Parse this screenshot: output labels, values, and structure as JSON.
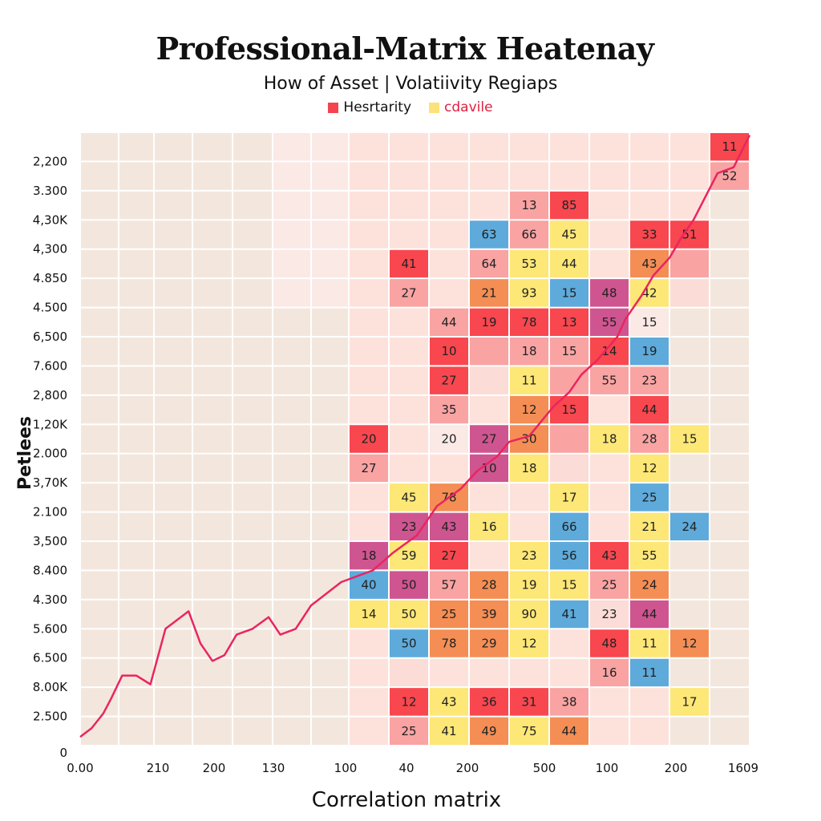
{
  "chart_data": {
    "type": "heatmap",
    "title": "Professional-Matrix Heatenay",
    "subtitle": "How of Asset | Volatiivity Regiaps",
    "legend": [
      {
        "label": "Hesrtarity",
        "color": "#f5434f",
        "text_color": "#111111"
      },
      {
        "label": "cdavile",
        "color": "#fbe27a",
        "text_color": "#e02040"
      }
    ],
    "legend_placement": "top-center",
    "xlabel": "Correlation matrix",
    "ylabel": "Petlees",
    "x_tick_labels": [
      "0.00",
      "210",
      "200",
      "130",
      "100",
      "40",
      "200",
      "500",
      "100",
      "200",
      "1609"
    ],
    "y_tick_labels": [
      "2,200",
      "3.300",
      "4,30K",
      "4,300",
      "4.850",
      "4.500",
      "6,500",
      "7.600",
      "2,800",
      "1,20K",
      "2.000",
      "3,70K",
      "2.100",
      "3,500",
      "8.400",
      "4.300",
      "5.600",
      "6.500",
      "8.00K",
      "2.500",
      "0"
    ],
    "grid": true,
    "colors": {
      "R": "#f8474f",
      "P": "#f9a3a3",
      "Y": "#fde776",
      "B": "#5eaadb",
      "O": "#f48e55",
      "M": "#cf5590",
      "L": "#fcdcd6",
      "W": "#fbe9e6",
      "beige": "#f3e7dd",
      "pinkbg": "#fde2dc",
      "line": "#ea2560"
    },
    "cells": [
      [
        {
          "c": 9,
          "v": "11",
          "k": "R"
        }
      ],
      [
        {
          "c": 9,
          "v": "52",
          "k": "P"
        }
      ],
      [
        {
          "c": 4,
          "v": "13",
          "k": "P"
        },
        {
          "c": 5,
          "v": "85",
          "k": "R"
        }
      ],
      [
        {
          "c": 3,
          "v": "63",
          "k": "B"
        },
        {
          "c": 4,
          "v": "66",
          "k": "P"
        },
        {
          "c": 5,
          "v": "45",
          "k": "Y"
        },
        {
          "c": 7,
          "v": "33",
          "k": "R"
        },
        {
          "c": 8,
          "v": "51",
          "k": "R"
        }
      ],
      [
        {
          "c": 1,
          "v": "41",
          "k": "R"
        },
        {
          "c": 3,
          "v": "64",
          "k": "P"
        },
        {
          "c": 4,
          "v": "53",
          "k": "Y"
        },
        {
          "c": 5,
          "v": "44",
          "k": "Y"
        },
        {
          "c": 7,
          "v": "43",
          "k": "O"
        },
        {
          "c": 8,
          "v": "",
          "k": "P"
        }
      ],
      [
        {
          "c": 1,
          "v": "27",
          "k": "P"
        },
        {
          "c": 3,
          "v": "21",
          "k": "O"
        },
        {
          "c": 4,
          "v": "93",
          "k": "Y"
        },
        {
          "c": 5,
          "v": "15",
          "k": "B"
        },
        {
          "c": 6,
          "v": "48",
          "k": "M"
        },
        {
          "c": 7,
          "v": "42",
          "k": "Y"
        },
        {
          "c": 8,
          "v": "",
          "k": "L"
        }
      ],
      [
        {
          "c": 2,
          "v": "44",
          "k": "P"
        },
        {
          "c": 3,
          "v": "19",
          "k": "R"
        },
        {
          "c": 4,
          "v": "78",
          "k": "R"
        },
        {
          "c": 5,
          "v": "13",
          "k": "R"
        },
        {
          "c": 6,
          "v": "55",
          "k": "M"
        },
        {
          "c": 7,
          "v": "15",
          "k": "W"
        }
      ],
      [
        {
          "c": 2,
          "v": "10",
          "k": "R"
        },
        {
          "c": 3,
          "v": "",
          "k": "P"
        },
        {
          "c": 4,
          "v": "18",
          "k": "P"
        },
        {
          "c": 5,
          "v": "15",
          "k": "P"
        },
        {
          "c": 6,
          "v": "14",
          "k": "R"
        },
        {
          "c": 7,
          "v": "19",
          "k": "B"
        }
      ],
      [
        {
          "c": 2,
          "v": "27",
          "k": "R"
        },
        {
          "c": 3,
          "v": "",
          "k": "L"
        },
        {
          "c": 4,
          "v": "11",
          "k": "Y"
        },
        {
          "c": 5,
          "v": "",
          "k": "P"
        },
        {
          "c": 6,
          "v": "55",
          "k": "P"
        },
        {
          "c": 7,
          "v": "23",
          "k": "P"
        }
      ],
      [
        {
          "c": 2,
          "v": "35",
          "k": "P"
        },
        {
          "c": 4,
          "v": "12",
          "k": "O"
        },
        {
          "c": 5,
          "v": "15",
          "k": "R"
        },
        {
          "c": 7,
          "v": "44",
          "k": "R"
        }
      ],
      [
        {
          "c": 0,
          "v": "20",
          "k": "R"
        },
        {
          "c": 2,
          "v": "20",
          "k": "W"
        },
        {
          "c": 3,
          "v": "27",
          "k": "M"
        },
        {
          "c": 4,
          "v": "30",
          "k": "O"
        },
        {
          "c": 5,
          "v": "",
          "k": "P"
        },
        {
          "c": 6,
          "v": "18",
          "k": "Y"
        },
        {
          "c": 7,
          "v": "28",
          "k": "P"
        },
        {
          "c": 8,
          "v": "15",
          "k": "Y"
        }
      ],
      [
        {
          "c": 0,
          "v": "27",
          "k": "P"
        },
        {
          "c": 3,
          "v": "10",
          "k": "M"
        },
        {
          "c": 4,
          "v": "18",
          "k": "Y"
        },
        {
          "c": 5,
          "v": "",
          "k": "L"
        },
        {
          "c": 7,
          "v": "12",
          "k": "Y"
        }
      ],
      [
        {
          "c": 1,
          "v": "45",
          "k": "Y"
        },
        {
          "c": 2,
          "v": "78",
          "k": "O"
        },
        {
          "c": 5,
          "v": "17",
          "k": "Y"
        },
        {
          "c": 7,
          "v": "25",
          "k": "B"
        }
      ],
      [
        {
          "c": 1,
          "v": "23",
          "k": "M"
        },
        {
          "c": 2,
          "v": "43",
          "k": "M"
        },
        {
          "c": 3,
          "v": "16",
          "k": "Y"
        },
        {
          "c": 5,
          "v": "66",
          "k": "B"
        },
        {
          "c": 7,
          "v": "21",
          "k": "Y"
        },
        {
          "c": 8,
          "v": "24",
          "k": "B"
        }
      ],
      [
        {
          "c": 0,
          "v": "18",
          "k": "M"
        },
        {
          "c": 1,
          "v": "59",
          "k": "Y"
        },
        {
          "c": 2,
          "v": "27",
          "k": "R"
        },
        {
          "c": 4,
          "v": "23",
          "k": "Y"
        },
        {
          "c": 5,
          "v": "56",
          "k": "B"
        },
        {
          "c": 6,
          "v": "43",
          "k": "R"
        },
        {
          "c": 7,
          "v": "55",
          "k": "Y"
        }
      ],
      [
        {
          "c": 0,
          "v": "40",
          "k": "B"
        },
        {
          "c": 1,
          "v": "50",
          "k": "M"
        },
        {
          "c": 2,
          "v": "57",
          "k": "P"
        },
        {
          "c": 3,
          "v": "28",
          "k": "O"
        },
        {
          "c": 4,
          "v": "19",
          "k": "Y"
        },
        {
          "c": 5,
          "v": "15",
          "k": "Y"
        },
        {
          "c": 6,
          "v": "25",
          "k": "P"
        },
        {
          "c": 7,
          "v": "24",
          "k": "O"
        }
      ],
      [
        {
          "c": 0,
          "v": "14",
          "k": "Y"
        },
        {
          "c": 1,
          "v": "50",
          "k": "Y"
        },
        {
          "c": 2,
          "v": "25",
          "k": "O"
        },
        {
          "c": 3,
          "v": "39",
          "k": "O"
        },
        {
          "c": 4,
          "v": "90",
          "k": "Y"
        },
        {
          "c": 5,
          "v": "41",
          "k": "B"
        },
        {
          "c": 6,
          "v": "23",
          "k": "L"
        },
        {
          "c": 7,
          "v": "44",
          "k": "M"
        }
      ],
      [
        {
          "c": 1,
          "v": "50",
          "k": "B"
        },
        {
          "c": 2,
          "v": "78",
          "k": "O"
        },
        {
          "c": 3,
          "v": "29",
          "k": "O"
        },
        {
          "c": 4,
          "v": "12",
          "k": "Y"
        },
        {
          "c": 6,
          "v": "48",
          "k": "R"
        },
        {
          "c": 7,
          "v": "11",
          "k": "Y"
        },
        {
          "c": 8,
          "v": "12",
          "k": "O"
        }
      ],
      [
        {
          "c": 1,
          "v": "",
          "k": "L"
        },
        {
          "c": 6,
          "v": "16",
          "k": "P"
        },
        {
          "c": 7,
          "v": "11",
          "k": "B"
        }
      ],
      [
        {
          "c": 1,
          "v": "12",
          "k": "R"
        },
        {
          "c": 2,
          "v": "43",
          "k": "Y"
        },
        {
          "c": 3,
          "v": "36",
          "k": "R"
        },
        {
          "c": 4,
          "v": "31",
          "k": "R"
        },
        {
          "c": 5,
          "v": "38",
          "k": "P"
        },
        {
          "c": 8,
          "v": "17",
          "k": "Y"
        }
      ],
      [
        {
          "c": 1,
          "v": "25",
          "k": "P"
        },
        {
          "c": 2,
          "v": "41",
          "k": "Y"
        },
        {
          "c": 3,
          "v": "49",
          "k": "O"
        },
        {
          "c": 4,
          "v": "75",
          "k": "Y"
        },
        {
          "c": 5,
          "v": "44",
          "k": "O"
        }
      ]
    ],
    "line_series": {
      "x": [
        0,
        0.3,
        0.6,
        0.8,
        1.1,
        1.5,
        1.9,
        2.3,
        2.9,
        3.2,
        3.5,
        3.8,
        4.1,
        4.5,
        4.9,
        5.2,
        5.6,
        6.0,
        6.3,
        6.8,
        7.6,
        8.1,
        8.7,
        9.2,
        9.8,
        10.2,
        10.7,
        11.0,
        11.5,
        12.1,
        12.5,
        12.8,
        13.2,
        13.7,
        13.9,
        14.3,
        14.6,
        15.0,
        15.3,
        15.6,
        15.9,
        16.2,
        16.6,
        17.0
      ],
      "y": [
        0.3,
        0.6,
        1.1,
        1.6,
        2.4,
        2.4,
        2.1,
        4.0,
        4.6,
        3.5,
        2.9,
        3.1,
        3.8,
        4.0,
        4.4,
        3.8,
        4.0,
        4.8,
        5.1,
        5.6,
        6.0,
        6.6,
        7.2,
        8.2,
        8.8,
        9.4,
        9.9,
        10.4,
        10.6,
        11.6,
        12.1,
        12.7,
        13.2,
        14.0,
        14.6,
        15.4,
        16.1,
        16.7,
        17.4,
        18.0,
        18.8,
        19.6,
        19.8,
        20.9
      ]
    }
  }
}
